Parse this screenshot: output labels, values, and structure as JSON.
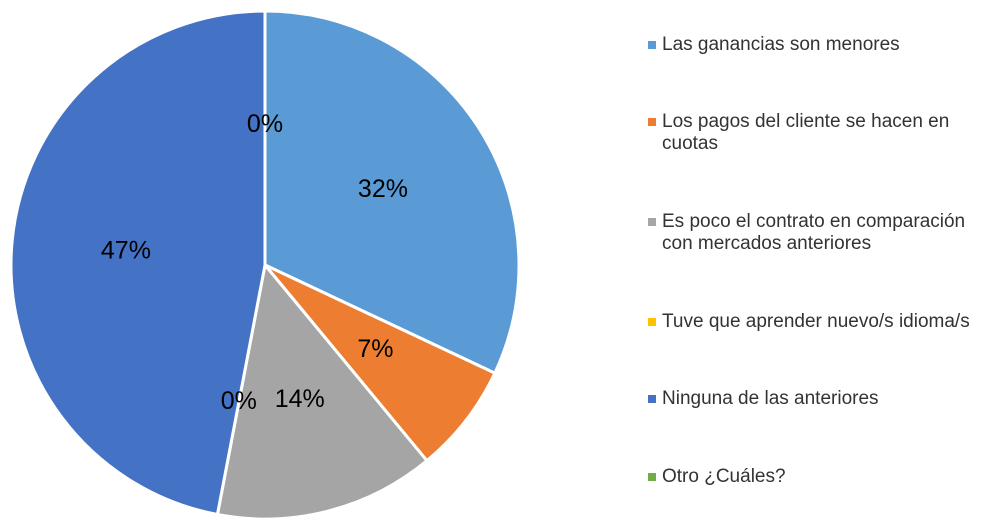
{
  "chart_data": {
    "type": "pie",
    "categories": [
      "Las ganancias son menores",
      "Los pagos del cliente se hacen en cuotas",
      "Es poco el contrato en comparación con mercados anteriores",
      "Tuve que aprender nuevo/s idioma/s",
      "Ninguna de las anteriores",
      "Otro ¿Cuáles?"
    ],
    "values": [
      32,
      7,
      14,
      0,
      47,
      0
    ],
    "value_labels": [
      "32%",
      "7%",
      "14%",
      "0%",
      "47%",
      "0%"
    ],
    "colors": [
      "#5b9bd5",
      "#ed7d31",
      "#a5a5a5",
      "#ffc000",
      "#4472c4",
      "#70ad47"
    ],
    "legend": "right"
  }
}
